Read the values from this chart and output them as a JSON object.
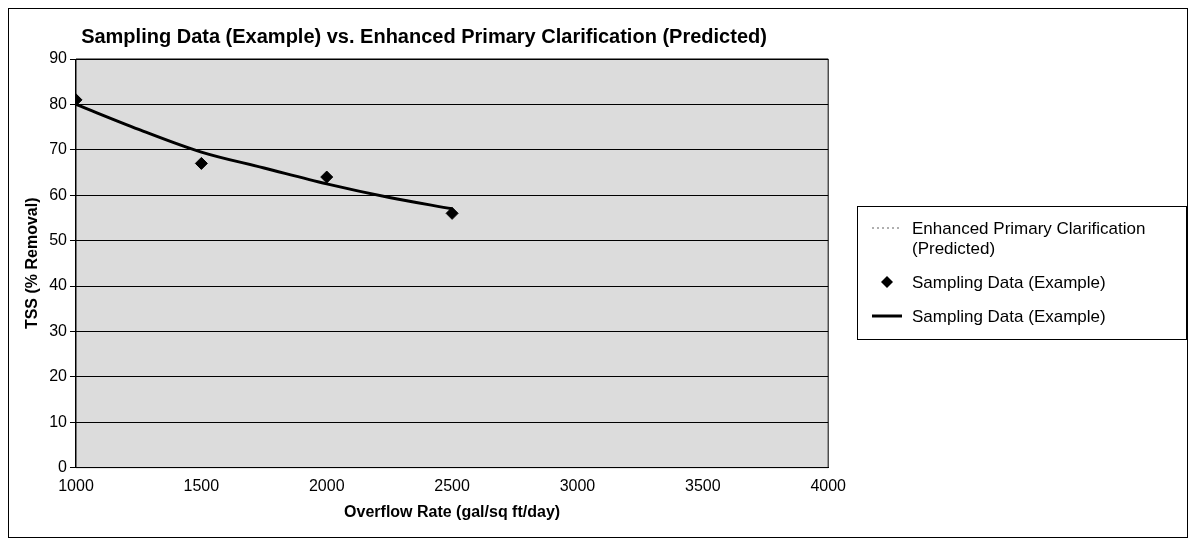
{
  "chart_data": {
    "type": "scatter",
    "title": "Sampling Data (Example) vs. Enhanced Primary Clarification (Predicted)",
    "xlabel": "Overflow Rate (gal/sq ft/day)",
    "ylabel": "TSS (% Removal)",
    "xlim": [
      1000,
      4000
    ],
    "xticks": [
      1000,
      1500,
      2000,
      2500,
      3000,
      3500,
      4000
    ],
    "ylim": [
      0,
      90
    ],
    "yticks": [
      0,
      10,
      20,
      30,
      40,
      50,
      60,
      70,
      80,
      90
    ],
    "grid": "y",
    "legend": "right",
    "series": [
      {
        "name": "Enhanced Primary Clarification (Predicted)",
        "type": "line",
        "color": "#b0b0b0",
        "line_style": "dotted",
        "marker": "none"
      },
      {
        "name": "Sampling Data (Example)",
        "color": "#000000",
        "marker": "diamond",
        "x": [
          1000,
          1500,
          2000,
          2500
        ],
        "values": [
          81,
          67,
          64,
          56
        ]
      },
      {
        "name": "Sampling Data (Example)",
        "type": "line",
        "color": "#000000",
        "line_style": "solid",
        "marker": "none",
        "x": [
          1000,
          1250,
          1500,
          1750,
          2000,
          2250,
          2500
        ],
        "values": [
          80,
          74.5,
          69.5,
          66,
          62.5,
          59.5,
          57
        ]
      }
    ]
  }
}
